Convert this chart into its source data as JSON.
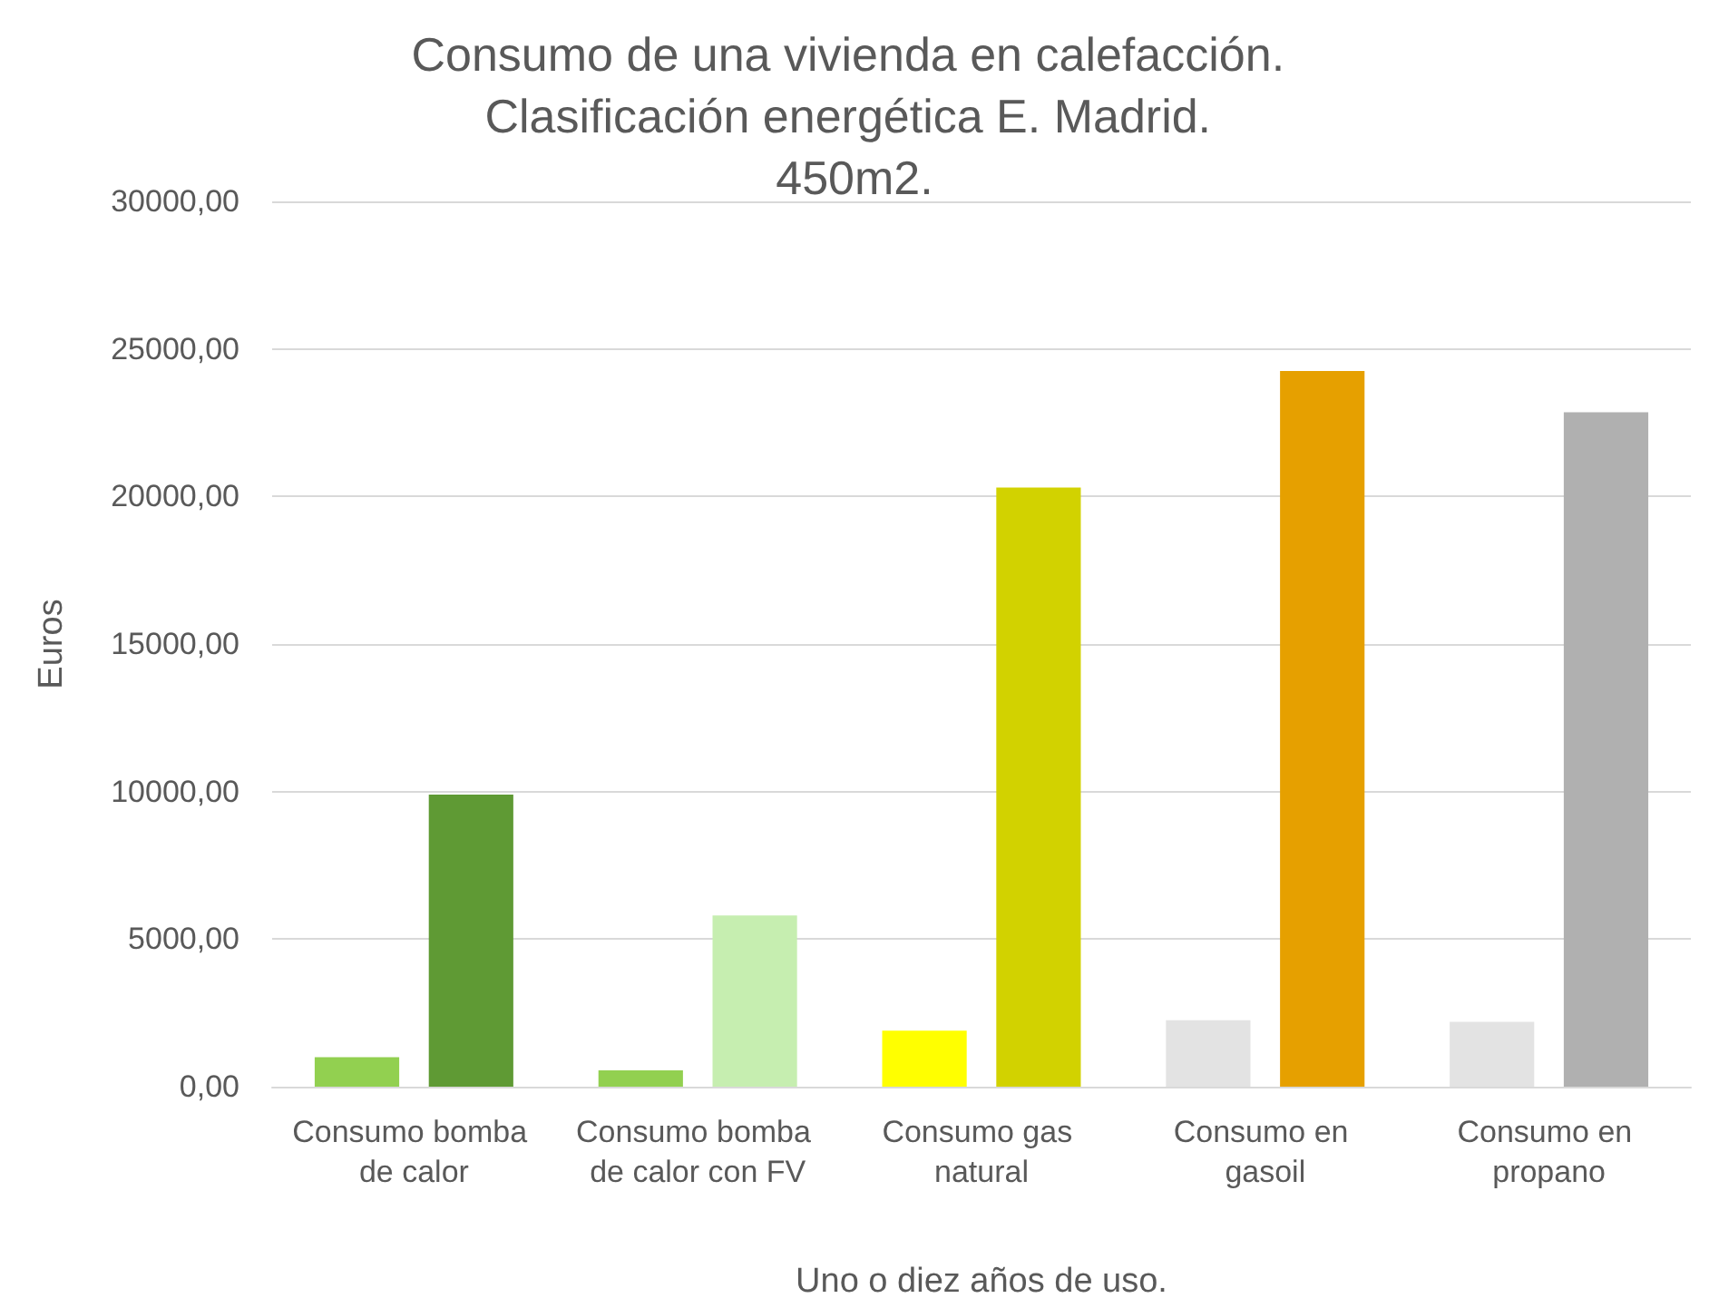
{
  "chart_data": {
    "type": "bar",
    "title": "Consumo de una vivienda en calefacción. Clasificación energética E. Madrid. 450m2.",
    "xlabel": "Uno o diez años de uso.",
    "ylabel": "Euros",
    "categories": [
      "Consumo bomba de calor",
      "Consumo bomba de calor con FV",
      "Consumo gas natural",
      "Consumo en gasoil",
      "Consumo en propano"
    ],
    "series": [
      {
        "colors": [
          "#92d050",
          "#92d050",
          "#ffff00",
          "#e3e3e3",
          "#e3e3e3"
        ],
        "values": [
          1000,
          550,
          1900,
          2250,
          2200
        ]
      },
      {
        "colors": [
          "#5f9a34",
          "#c6eeb0",
          "#d2d200",
          "#e6a000",
          "#b0b0b0"
        ],
        "values": [
          9900,
          5800,
          20300,
          24250,
          22850
        ]
      }
    ],
    "ylim": [
      0,
      30000
    ],
    "yticks": [
      {
        "value": 0,
        "label": "0,00"
      },
      {
        "value": 5000,
        "label": "5000,00"
      },
      {
        "value": 10000,
        "label": "10000,00"
      },
      {
        "value": 15000,
        "label": "15000,00"
      },
      {
        "value": 20000,
        "label": "20000,00"
      },
      {
        "value": 25000,
        "label": "25000,00"
      },
      {
        "value": 30000,
        "label": "30000,00"
      }
    ],
    "grid": "y"
  }
}
